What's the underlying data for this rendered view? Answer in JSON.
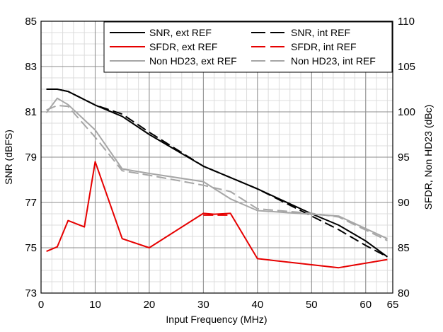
{
  "chart_data": {
    "type": "line",
    "title": "",
    "xlabel": "Input Frequency (MHz)",
    "ylabel": "SNR (dBFS)",
    "y2label": "SFDR, Non HD23 (dBc)",
    "xlim": [
      0,
      65
    ],
    "ylim": [
      73,
      85
    ],
    "y2lim": [
      80,
      110
    ],
    "x_ticks": [
      0,
      10,
      20,
      30,
      40,
      50,
      60,
      65
    ],
    "y_ticks": [
      73,
      75,
      77,
      79,
      81,
      83,
      85
    ],
    "y2_ticks": [
      80,
      85,
      90,
      95,
      100,
      105,
      110
    ],
    "grid": true,
    "legend_position": "top-right",
    "series": [
      {
        "name": "SNR, ext REF",
        "axis": "left",
        "color": "#000000",
        "dash": "solid",
        "x": [
          1,
          3,
          5,
          10,
          15,
          20,
          30,
          40,
          50,
          55,
          60,
          64
        ],
        "values": [
          82.0,
          82.0,
          81.9,
          81.3,
          80.8,
          80.0,
          78.6,
          77.6,
          76.5,
          76.0,
          75.3,
          74.6
        ]
      },
      {
        "name": "SNR, int REF",
        "axis": "left",
        "color": "#000000",
        "dash": "dashed",
        "x": [
          1,
          3,
          5,
          10,
          15,
          20,
          30,
          40,
          50,
          55,
          60,
          64
        ],
        "values": [
          82.0,
          82.0,
          81.9,
          81.3,
          80.9,
          80.1,
          78.6,
          77.6,
          76.4,
          75.8,
          75.1,
          74.6
        ]
      },
      {
        "name": "SFDR, ext REF",
        "axis": "right",
        "color": "#e60000",
        "dash": "solid",
        "x": [
          1,
          3,
          5,
          8,
          10,
          15,
          20,
          30,
          32,
          35,
          40,
          55,
          64
        ],
        "values": [
          84.6,
          85.1,
          88.0,
          87.3,
          94.5,
          86.0,
          85.0,
          88.8,
          88.7,
          88.8,
          83.8,
          82.8,
          83.7
        ]
      },
      {
        "name": "SFDR, int REF",
        "axis": "right",
        "color": "#e60000",
        "dash": "dashed",
        "x": [
          30,
          32,
          35
        ],
        "values": [
          88.6,
          88.6,
          88.6
        ]
      },
      {
        "name": "Non HD23, ext REF",
        "axis": "right",
        "color": "#a6a6a6",
        "dash": "solid",
        "x": [
          1,
          3,
          5,
          10,
          15,
          20,
          30,
          35,
          40,
          45,
          55,
          64
        ],
        "values": [
          99.9,
          101.5,
          100.8,
          98.0,
          93.7,
          93.2,
          92.3,
          90.4,
          89.1,
          88.9,
          88.5,
          86.0
        ]
      },
      {
        "name": "Non HD23, int REF",
        "axis": "right",
        "color": "#a6a6a6",
        "dash": "dashed",
        "x": [
          1,
          3,
          5,
          10,
          15,
          20,
          30,
          35,
          40,
          50,
          55,
          64
        ],
        "values": [
          100.2,
          100.7,
          100.6,
          97.2,
          93.5,
          93.0,
          91.9,
          91.2,
          89.3,
          88.8,
          88.4,
          85.8
        ]
      }
    ]
  }
}
